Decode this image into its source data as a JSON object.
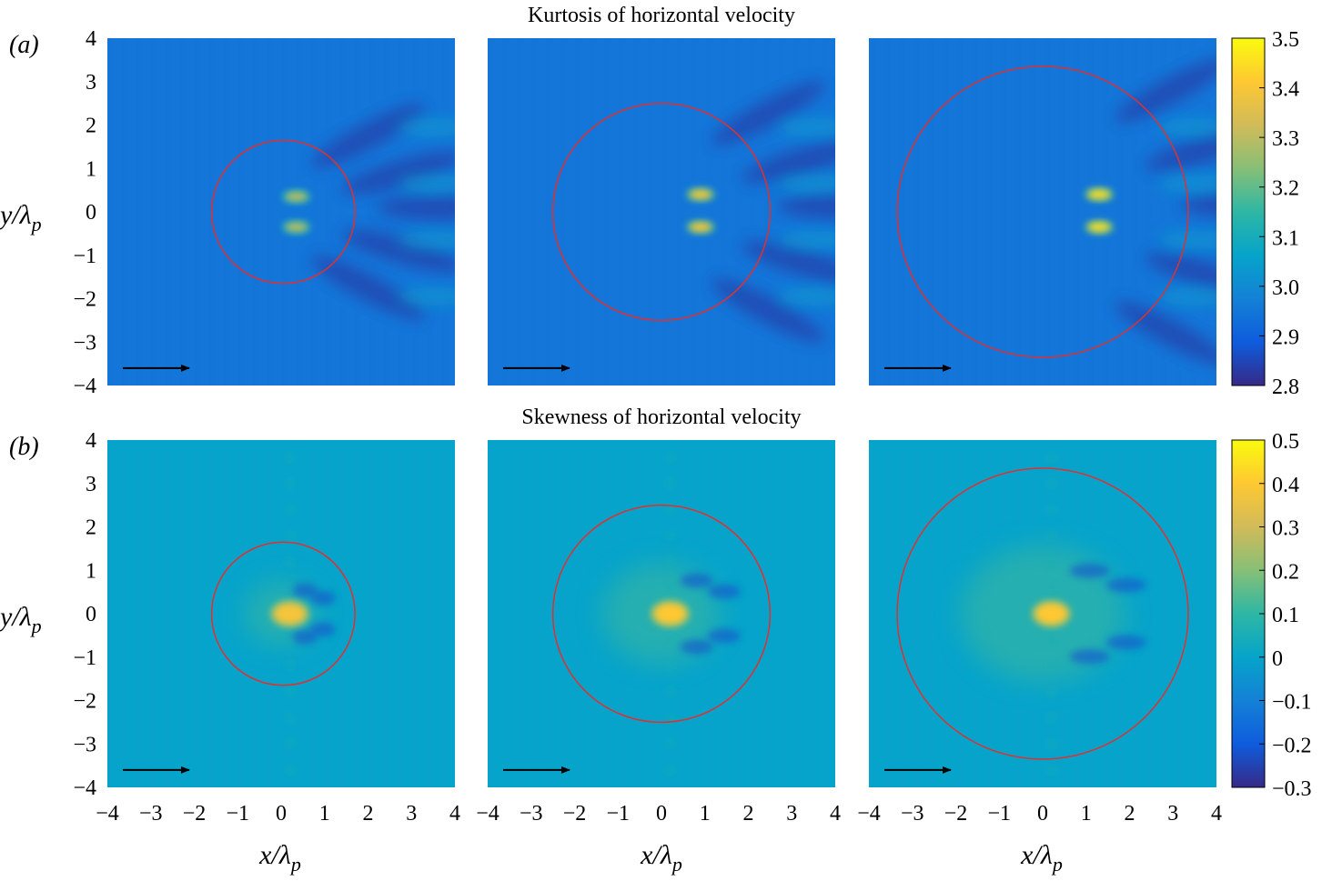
{
  "figure": {
    "rows": [
      {
        "label": "(a)",
        "title": "Kurtosis of horizontal velocity",
        "colorbar": {
          "min": 2.8,
          "max": 3.5,
          "ticks": [
            "3.5",
            "3.4",
            "3.3",
            "3.2",
            "3.1",
            "3.0",
            "2.9",
            "2.8"
          ],
          "background_value": 2.95
        }
      },
      {
        "label": "(b)",
        "title": "Skewness of horizontal velocity",
        "colorbar": {
          "min": -0.3,
          "max": 0.5,
          "ticks": [
            "0.5",
            "0.4",
            "0.3",
            "0.2",
            "0.1",
            "0",
            "−0.1",
            "−0.2",
            "−0.3"
          ],
          "background_value": 0.0
        }
      }
    ],
    "y_axis_label": "y/λp",
    "x_axis_label": "x/λp",
    "y_ticks": [
      "4",
      "3",
      "2",
      "1",
      "0",
      "-1",
      "-2",
      "-3",
      "-4"
    ],
    "x_ticks": [
      "-4",
      "-3",
      "-2",
      "-1",
      "0",
      "1",
      "2",
      "3",
      "4"
    ],
    "circle_color": "#e03030",
    "arrow_color": "#000000",
    "colormap": "parula"
  },
  "chart_data": [
    {
      "type": "heatmap",
      "title": "Kurtosis of horizontal velocity",
      "panel": "(a)",
      "xlabel": "x/λp",
      "ylabel": "y/λp",
      "xlim": [
        -4,
        4
      ],
      "ylim": [
        -4,
        4
      ],
      "colorbar_range": [
        2.8,
        3.5
      ],
      "panels": [
        {
          "circle_center": [
            0.05,
            0.0
          ],
          "circle_radius": 1.65,
          "peaks": [
            {
              "x": 0.35,
              "y": 0.35,
              "value": 3.3
            },
            {
              "x": 0.35,
              "y": -0.35,
              "value": 3.3
            }
          ]
        },
        {
          "circle_center": [
            0.0,
            0.0
          ],
          "circle_radius": 2.5,
          "peaks": [
            {
              "x": 0.9,
              "y": 0.4,
              "value": 3.4
            },
            {
              "x": 0.9,
              "y": -0.35,
              "value": 3.4
            }
          ]
        },
        {
          "circle_center": [
            0.0,
            0.0
          ],
          "circle_radius": 3.35,
          "peaks": [
            {
              "x": 1.3,
              "y": 0.4,
              "value": 3.45
            },
            {
              "x": 1.3,
              "y": -0.35,
              "value": 3.45
            }
          ]
        }
      ]
    },
    {
      "type": "heatmap",
      "title": "Skewness of horizontal velocity",
      "panel": "(b)",
      "xlabel": "x/λp",
      "ylabel": "y/λp",
      "xlim": [
        -4,
        4
      ],
      "ylim": [
        -4,
        4
      ],
      "colorbar_range": [
        -0.3,
        0.5
      ],
      "panels": [
        {
          "circle_center": [
            0.05,
            0.0
          ],
          "circle_radius": 1.65,
          "peaks": [
            {
              "x": 0.2,
              "y": 0.0,
              "value": 0.38
            }
          ]
        },
        {
          "circle_center": [
            0.0,
            0.0
          ],
          "circle_radius": 2.5,
          "peaks": [
            {
              "x": 0.2,
              "y": 0.0,
              "value": 0.4
            }
          ]
        },
        {
          "circle_center": [
            0.0,
            0.0
          ],
          "circle_radius": 3.35,
          "peaks": [
            {
              "x": 0.2,
              "y": 0.0,
              "value": 0.4
            }
          ]
        }
      ]
    }
  ]
}
